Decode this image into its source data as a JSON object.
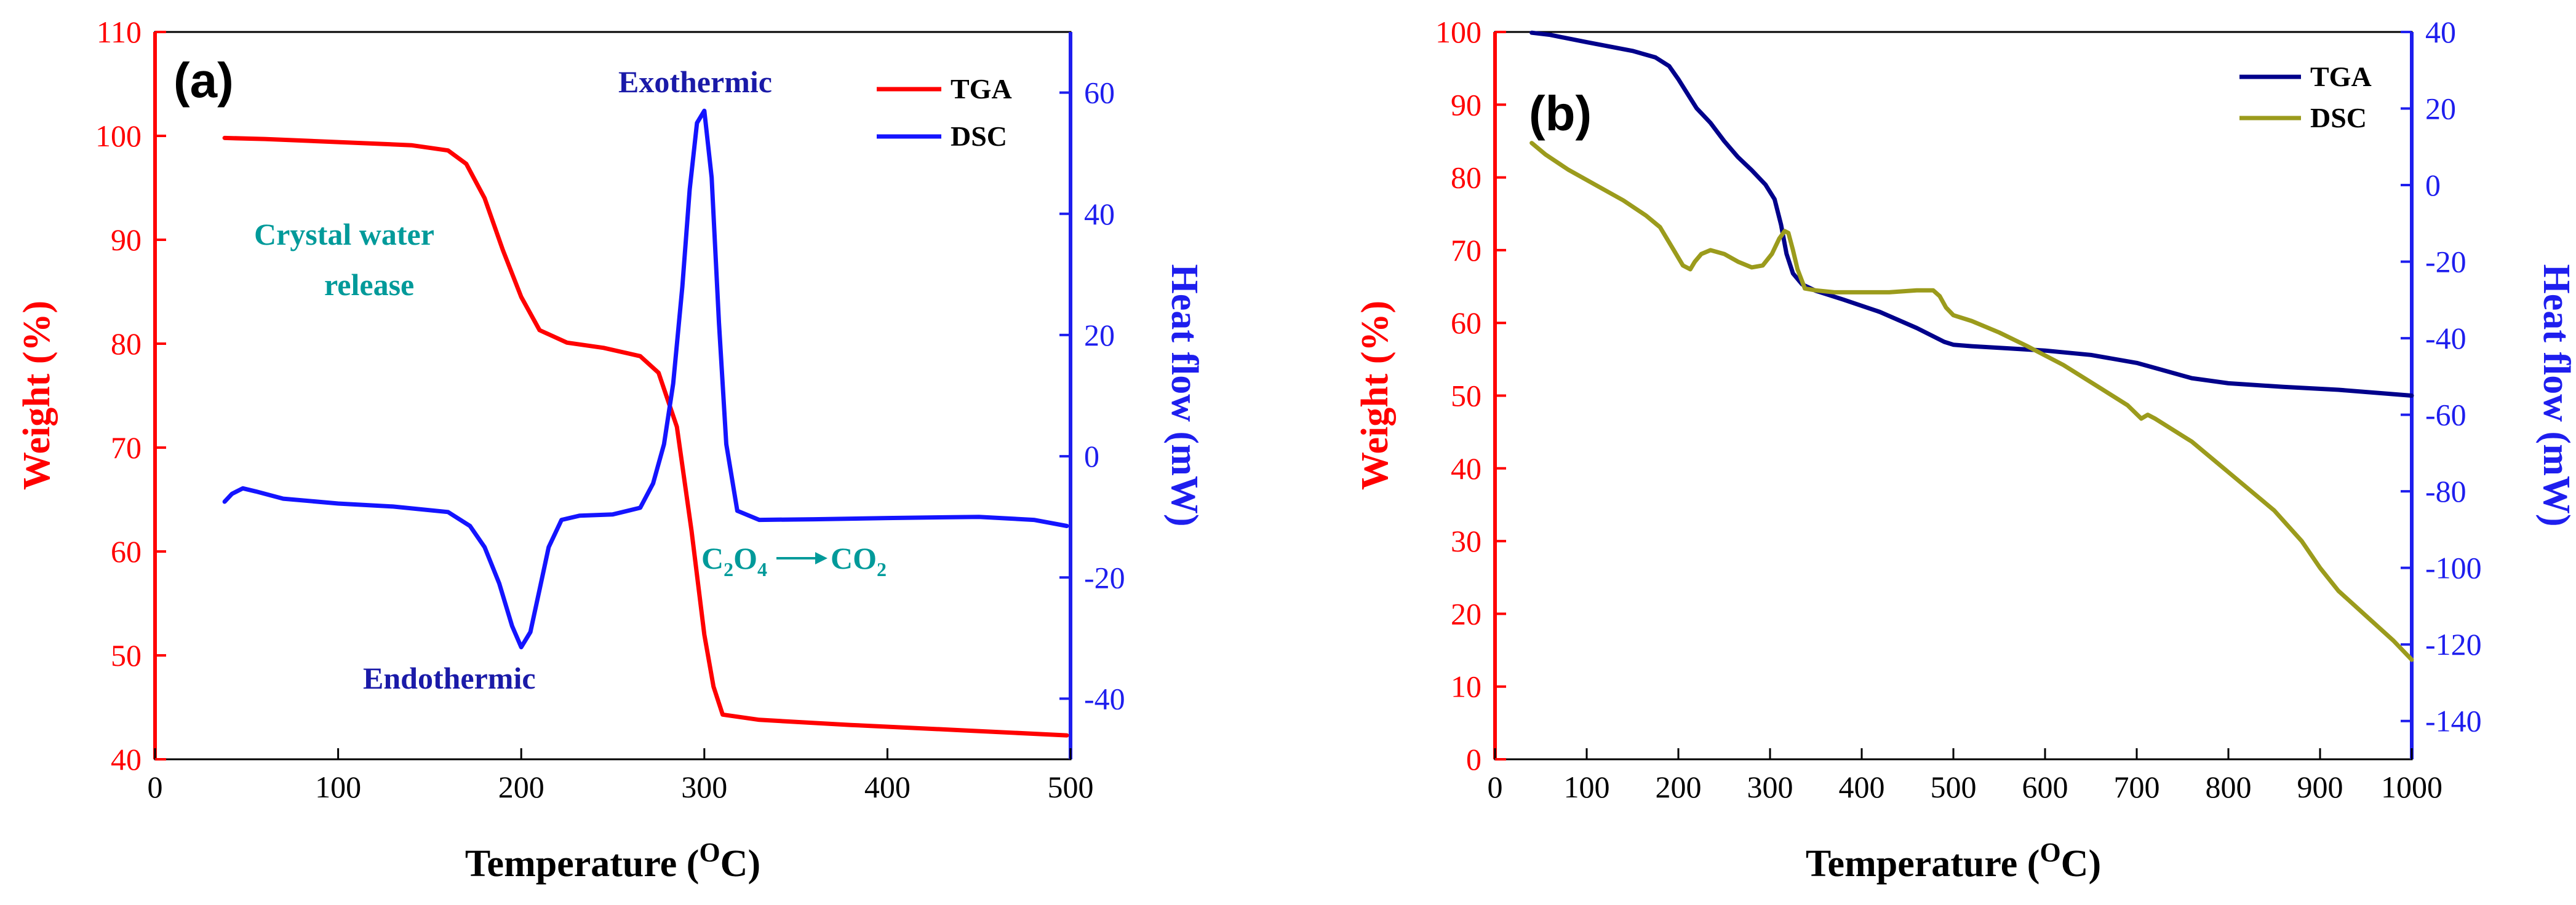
{
  "colors": {
    "red": "#ff0000",
    "blue": "#1414ff",
    "navy": "#00008b",
    "olive": "#9b9b1c",
    "teal": "#009a9a",
    "anno_blue": "#1a1aa8",
    "right_axis_blue": "#1e1eee"
  },
  "chart_data": [
    {
      "type": "line",
      "panel_label": "(a)",
      "xlabel": "Temperature (",
      "xlabel_sup": "O",
      "xlabel_suffix": "C)",
      "ylabel_left": "Weight (%)",
      "ylabel_right": "Heat flow (mW)",
      "xlim": [
        0,
        500
      ],
      "ylim_left": [
        40,
        110
      ],
      "ylim_right": [
        -50,
        70
      ],
      "x_ticks": [
        "0",
        "100",
        "200",
        "300",
        "400",
        "500"
      ],
      "y_ticks_left": [
        "40",
        "50",
        "60",
        "70",
        "80",
        "90",
        "100",
        "110"
      ],
      "y_ticks_right": [
        "-40",
        "-20",
        "0",
        "20",
        "40",
        "60"
      ],
      "legend": [
        {
          "name": "TGA",
          "color": "#ff0000"
        },
        {
          "name": "DSC",
          "color": "#1414ff"
        }
      ],
      "annotations": {
        "exothermic": "Exothermic",
        "endothermic": "Endothermic",
        "crystal_line1": "Crystal water",
        "crystal_line2": "release",
        "reaction_c": "C",
        "reaction_c_sub": "2",
        "reaction_o": "O",
        "reaction_o_sub": "4",
        "reaction_product": "CO",
        "reaction_product_sub": "2"
      },
      "series": [
        {
          "name": "TGA",
          "axis": "left",
          "color": "#ff0000",
          "x": [
            38,
            60,
            100,
            140,
            160,
            170,
            180,
            190,
            200,
            210,
            225,
            245,
            265,
            275,
            285,
            293,
            300,
            305,
            310,
            330,
            380,
            440,
            498
          ],
          "y": [
            99.8,
            99.7,
            99.4,
            99.1,
            98.6,
            97.3,
            94.0,
            89.0,
            84.5,
            81.3,
            80.1,
            79.6,
            78.8,
            77.2,
            72.0,
            62.0,
            52.0,
            47.0,
            44.3,
            43.8,
            43.3,
            42.8,
            42.3
          ]
        },
        {
          "name": "DSC",
          "axis": "right",
          "color": "#1414ff",
          "x": [
            38,
            42,
            48,
            55,
            70,
            100,
            130,
            160,
            172,
            180,
            188,
            195,
            200,
            205,
            210,
            215,
            222,
            232,
            250,
            265,
            272,
            278,
            283,
            288,
            292,
            296,
            300,
            304,
            308,
            312,
            318,
            330,
            360,
            400,
            450,
            480,
            498
          ],
          "y": [
            -7.5,
            -6.2,
            -5.3,
            -5.8,
            -7.0,
            -7.8,
            -8.3,
            -9.2,
            -11.5,
            -15.0,
            -21.0,
            -28.0,
            -31.5,
            -29.0,
            -22.0,
            -15.0,
            -10.5,
            -9.8,
            -9.6,
            -8.5,
            -4.5,
            2.0,
            12.0,
            28.0,
            44.0,
            55.0,
            57.0,
            46.0,
            22.0,
            2.0,
            -9.0,
            -10.5,
            -10.4,
            -10.2,
            -10.0,
            -10.5,
            -11.5
          ]
        }
      ]
    },
    {
      "type": "line",
      "panel_label": "(b)",
      "xlabel": "Temperature (",
      "xlabel_sup": "O",
      "xlabel_suffix": "C)",
      "ylabel_left": "Weight (%)",
      "ylabel_right": "Heat flow (mW)",
      "xlim": [
        0,
        1000
      ],
      "ylim_left": [
        0,
        100
      ],
      "ylim_right": [
        -150,
        40
      ],
      "x_ticks": [
        "0",
        "100",
        "200",
        "300",
        "400",
        "500",
        "600",
        "700",
        "800",
        "900",
        "1000"
      ],
      "y_ticks_left": [
        "0",
        "10",
        "20",
        "30",
        "40",
        "50",
        "60",
        "70",
        "80",
        "90",
        "100"
      ],
      "y_ticks_right": [
        "-140",
        "-120",
        "-100",
        "-80",
        "-60",
        "-40",
        "-20",
        "0",
        "20",
        "40"
      ],
      "legend": [
        {
          "name": "TGA",
          "color": "#00008b"
        },
        {
          "name": "DSC",
          "color": "#9b9b1c"
        }
      ],
      "series": [
        {
          "name": "TGA",
          "axis": "left",
          "color": "#00008b",
          "x": [
            40,
            60,
            100,
            150,
            175,
            190,
            200,
            210,
            220,
            235,
            250,
            265,
            280,
            295,
            305,
            312,
            318,
            325,
            335,
            350,
            380,
            420,
            460,
            490,
            500,
            520,
            560,
            600,
            650,
            700,
            720,
            760,
            800,
            860,
            920,
            980,
            1000
          ],
          "y": [
            99.9,
            99.6,
            98.6,
            97.4,
            96.5,
            95.3,
            93.5,
            91.5,
            89.5,
            87.5,
            85.0,
            82.8,
            81.0,
            79.0,
            77.0,
            73.5,
            69.5,
            66.8,
            65.3,
            64.4,
            63.2,
            61.5,
            59.3,
            57.4,
            57.0,
            56.8,
            56.5,
            56.2,
            55.6,
            54.5,
            53.8,
            52.4,
            51.7,
            51.2,
            50.8,
            50.2,
            50.0
          ]
        },
        {
          "name": "DSC",
          "axis": "right",
          "color": "#9b9b1c",
          "x": [
            40,
            55,
            80,
            110,
            140,
            165,
            180,
            195,
            205,
            213,
            218,
            225,
            235,
            250,
            265,
            280,
            292,
            302,
            310,
            316,
            320,
            325,
            330,
            338,
            350,
            370,
            400,
            430,
            460,
            478,
            485,
            492,
            500,
            520,
            550,
            580,
            620,
            660,
            690,
            705,
            712,
            720,
            760,
            800,
            850,
            880,
            900,
            920,
            950,
            980,
            1000
          ],
          "y": [
            11,
            8,
            4,
            0,
            -4,
            -8,
            -11,
            -17,
            -21,
            -22,
            -20,
            -18,
            -17,
            -18,
            -20,
            -21.5,
            -21,
            -18,
            -14,
            -12,
            -12.5,
            -17,
            -22,
            -27,
            -27.5,
            -28,
            -28,
            -28,
            -27.5,
            -27.5,
            -29,
            -32,
            -34,
            -35.5,
            -38.5,
            -42,
            -47,
            -53,
            -57.5,
            -61,
            -60,
            -61,
            -67,
            -75,
            -85,
            -93,
            -100,
            -106,
            -112.5,
            -119,
            -124
          ]
        }
      ]
    }
  ]
}
